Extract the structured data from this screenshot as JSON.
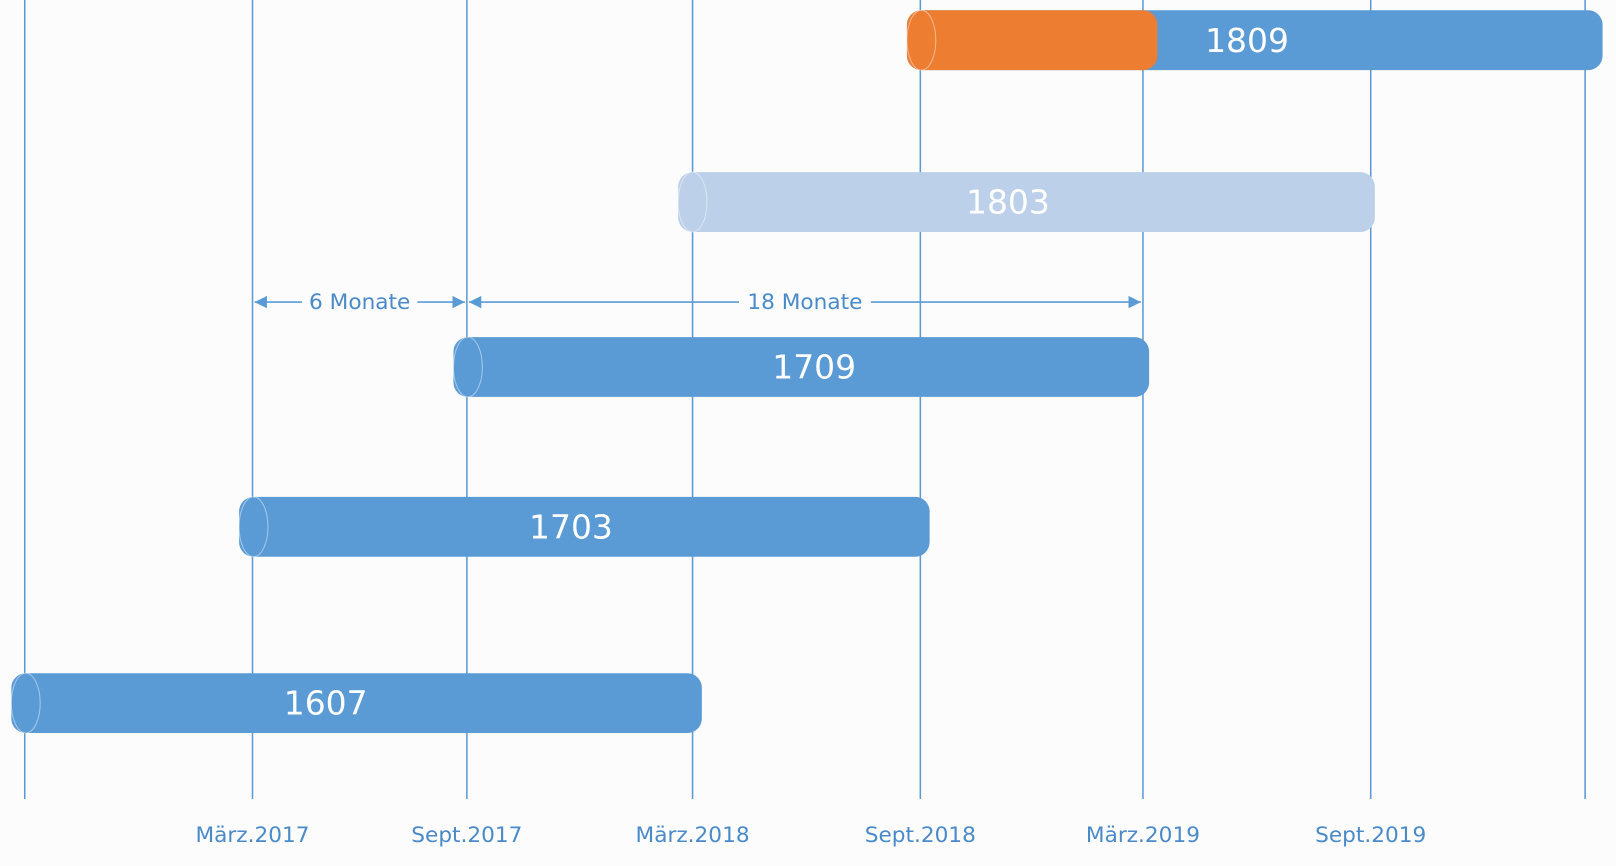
{
  "axis_labels": [
    "März.2017",
    "Sept.2017",
    "März.2018",
    "Sept.2018",
    "März.2019",
    "Sept.2019"
  ],
  "bars": [
    {
      "label": "1809"
    },
    {
      "label": "1803"
    },
    {
      "label": "1709"
    },
    {
      "label": "1703"
    },
    {
      "label": "1607"
    }
  ],
  "spans": [
    {
      "label": "6 Monate"
    },
    {
      "label": "18 Monate"
    }
  ]
}
